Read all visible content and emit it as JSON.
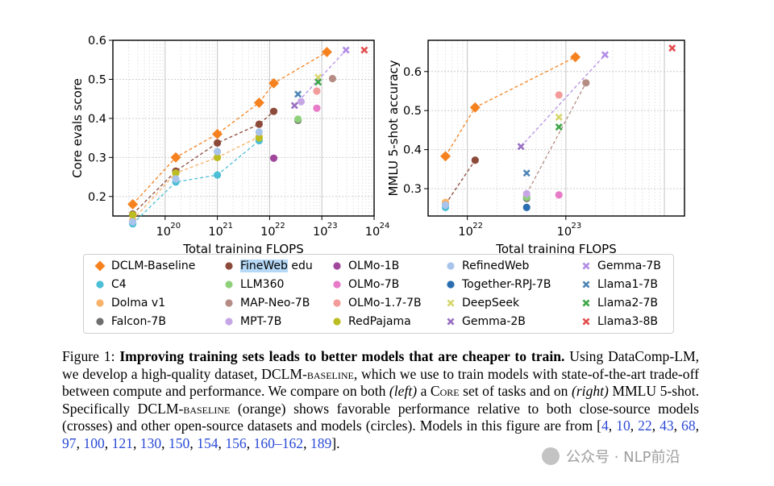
{
  "chart_data": [
    {
      "type": "scatter",
      "xscale": "log",
      "xlabel": "Total training FLOPS",
      "ylabel": "Core evals score",
      "xlim": [
        1e+19,
        1e+24
      ],
      "ylim": [
        0.15,
        0.6
      ],
      "xtick_labels": [
        {
          "base": "10",
          "exp": "20",
          "value": 1e+20
        },
        {
          "base": "10",
          "exp": "21",
          "value": 1e+21
        },
        {
          "base": "10",
          "exp": "22",
          "value": 1e+22
        },
        {
          "base": "10",
          "exp": "23",
          "value": 1e+23
        },
        {
          "base": "10",
          "exp": "24",
          "value": 1e+24
        }
      ],
      "yticks": [
        0.2,
        0.3,
        0.4,
        0.5,
        0.6
      ],
      "ytick_labels": [
        "0.2",
        "0.3",
        "0.4",
        "0.5",
        "0.6"
      ],
      "series": [
        {
          "name": "DCLM-Baseline",
          "color": "#f5821f",
          "marker": "diamond",
          "line": true,
          "points": [
            [
              2.4e+19,
              0.18
            ],
            [
              1.6e+20,
              0.3
            ],
            [
              1e+21,
              0.36
            ],
            [
              6.3e+21,
              0.44
            ],
            [
              1.2e+22,
              0.49
            ],
            [
              1.25e+23,
              0.57
            ]
          ]
        },
        {
          "name": "C4",
          "color": "#4cbfd6",
          "marker": "circle",
          "line": true,
          "points": [
            [
              2.4e+19,
              0.13
            ],
            [
              1.6e+20,
              0.237
            ],
            [
              1e+21,
              0.255
            ],
            [
              6.3e+21,
              0.343
            ]
          ]
        },
        {
          "name": "Dolma v1",
          "color": "#f8b26a",
          "marker": "circle",
          "line": true,
          "points": [
            [
              2.4e+19,
              0.14
            ],
            [
              1.6e+20,
              0.26
            ],
            [
              1e+21,
              0.3
            ],
            [
              6.3e+21,
              0.353
            ]
          ]
        },
        {
          "name": "Falcon-7B",
          "color": "#6e6e6e",
          "marker": "circle",
          "line": false,
          "points": [
            [
              3.5e+22,
              0.395
            ]
          ]
        },
        {
          "name": "FineWeb edu",
          "color": "#8c4a3a",
          "marker": "circle",
          "line": true,
          "points": [
            [
              2.4e+19,
              0.155
            ],
            [
              1.6e+20,
              0.265
            ],
            [
              1e+21,
              0.337
            ],
            [
              6.3e+21,
              0.385
            ],
            [
              1.2e+22,
              0.418
            ]
          ]
        },
        {
          "name": "LLM360",
          "color": "#8fd17a",
          "marker": "circle",
          "line": false,
          "points": [
            [
              3.5e+22,
              0.398
            ]
          ]
        },
        {
          "name": "MAP-Neo-7B",
          "color": "#b58c83",
          "marker": "circle",
          "line": false,
          "points": [
            [
              1.6e+23,
              0.502
            ]
          ]
        },
        {
          "name": "MPT-7B",
          "color": "#c7a6e6",
          "marker": "circle",
          "line": false,
          "points": [
            [
              4e+22,
              0.443
            ]
          ]
        },
        {
          "name": "OLMo-1B",
          "color": "#a0479c",
          "marker": "circle",
          "line": false,
          "points": [
            [
              1.2e+22,
              0.298
            ]
          ]
        },
        {
          "name": "OLMo-7B",
          "color": "#e77bc8",
          "marker": "circle",
          "line": false,
          "points": [
            [
              8e+22,
              0.426
            ]
          ]
        },
        {
          "name": "OLMo-1.7-7B",
          "color": "#f39b9b",
          "marker": "circle",
          "line": false,
          "points": [
            [
              8e+22,
              0.47
            ]
          ]
        },
        {
          "name": "RedPajama",
          "color": "#bcbd22",
          "marker": "circle",
          "line": false,
          "points": [
            [
              2.4e+19,
              0.153
            ],
            [
              1.6e+20,
              0.26
            ],
            [
              1e+21,
              0.3
            ],
            [
              6.3e+21,
              0.35
            ]
          ]
        },
        {
          "name": "RefinedWeb",
          "color": "#a9c4eb",
          "marker": "circle",
          "line": false,
          "points": [
            [
              2.4e+19,
              0.135
            ],
            [
              1.6e+20,
              0.245
            ],
            [
              1e+21,
              0.315
            ],
            [
              6.3e+21,
              0.365
            ]
          ]
        },
        {
          "name": "Together-RPJ-7B",
          "color": "#2a6db0",
          "marker": "circle",
          "line": false,
          "points": []
        },
        {
          "name": "DeepSeek",
          "color": "#d6d66e",
          "marker": "cross",
          "line": false,
          "points": [
            [
              8.5e+22,
              0.505
            ]
          ]
        },
        {
          "name": "Gemma-2B",
          "color": "#9970c2",
          "marker": "cross",
          "line": false,
          "points": [
            [
              3e+22,
              0.433
            ]
          ]
        },
        {
          "name": "Gemma-7B",
          "color": "#b38ce6",
          "marker": "cross",
          "line": false,
          "points": [
            [
              2.9e+23,
              0.575
            ]
          ]
        },
        {
          "name": "Llama1-7B",
          "color": "#4f86b6",
          "marker": "cross",
          "line": false,
          "points": [
            [
              3.5e+22,
              0.462
            ]
          ]
        },
        {
          "name": "Llama2-7B",
          "color": "#3fa64a",
          "marker": "cross",
          "line": false,
          "points": [
            [
              8.5e+22,
              0.493
            ]
          ]
        },
        {
          "name": "Llama3-8B",
          "color": "#e35050",
          "marker": "cross",
          "line": false,
          "points": [
            [
              6.5e+23,
              0.575
            ]
          ]
        }
      ],
      "trend_lines": [
        {
          "name": "Gemma-2B to Gemma-7B",
          "color": "#b38ce6",
          "points": [
            [
              3e+22,
              0.433
            ],
            [
              2.9e+23,
              0.575
            ]
          ]
        }
      ]
    },
    {
      "type": "scatter",
      "xscale": "log",
      "xlabel": "Total training FLOPS",
      "ylabel": "MMLU 5-shot accuracy",
      "xlim": [
        4e+21,
        1.6e+24
      ],
      "ylim": [
        0.23,
        0.68
      ],
      "xtick_labels": [
        {
          "base": "10",
          "exp": "22",
          "value": 1e+22
        },
        {
          "base": "10",
          "exp": "23",
          "value": 1e+23
        }
      ],
      "yticks": [
        0.3,
        0.4,
        0.5,
        0.6
      ],
      "ytick_labels": [
        "0.3",
        "0.4",
        "0.5",
        "0.6"
      ],
      "series": [
        {
          "name": "DCLM-Baseline",
          "color": "#f5821f",
          "marker": "diamond",
          "line": true,
          "points": [
            [
              6e+21,
              0.383
            ],
            [
              1.2e+22,
              0.508
            ],
            [
              1.25e+23,
              0.637
            ]
          ]
        },
        {
          "name": "FineWeb edu",
          "color": "#8c4a3a",
          "marker": "circle",
          "line": true,
          "points": [
            [
              6e+21,
              0.26
            ],
            [
              1.2e+22,
              0.373
            ]
          ]
        },
        {
          "name": "C4",
          "color": "#4cbfd6",
          "marker": "circle",
          "line": false,
          "points": [
            [
              6e+21,
              0.252
            ]
          ]
        },
        {
          "name": "Dolma v1",
          "color": "#f8b26a",
          "marker": "circle",
          "line": false,
          "points": [
            [
              6e+21,
              0.265
            ]
          ]
        },
        {
          "name": "RefinedWeb",
          "color": "#a9c4eb",
          "marker": "circle",
          "line": false,
          "points": [
            [
              6e+21,
              0.258
            ],
            [
              4e+22,
              0.28
            ]
          ]
        },
        {
          "name": "Falcon-7B",
          "color": "#6e6e6e",
          "marker": "circle",
          "line": false,
          "points": [
            [
              4e+22,
              0.275
            ]
          ]
        },
        {
          "name": "LLM360",
          "color": "#8fd17a",
          "marker": "circle",
          "line": false,
          "points": [
            [
              4e+22,
              0.278
            ]
          ]
        },
        {
          "name": "MPT-7B",
          "color": "#c7a6e6",
          "marker": "circle",
          "line": false,
          "points": [
            [
              4e+22,
              0.287
            ]
          ]
        },
        {
          "name": "Together-RPJ-7B",
          "color": "#2a6db0",
          "marker": "circle",
          "line": false,
          "points": [
            [
              4e+22,
              0.252
            ]
          ]
        },
        {
          "name": "OLMo-7B",
          "color": "#e77bc8",
          "marker": "circle",
          "line": false,
          "points": [
            [
              8.5e+22,
              0.284
            ]
          ]
        },
        {
          "name": "OLMo-1.7-7B",
          "color": "#f39b9b",
          "marker": "circle",
          "line": false,
          "points": [
            [
              8.5e+22,
              0.54
            ]
          ]
        },
        {
          "name": "MAP-Neo-7B",
          "color": "#b58c83",
          "marker": "circle",
          "line": false,
          "points": [
            [
              1.6e+23,
              0.571
            ]
          ]
        },
        {
          "name": "Gemma-2B",
          "color": "#9970c2",
          "marker": "cross",
          "line": false,
          "points": [
            [
              3.5e+22,
              0.408
            ]
          ]
        },
        {
          "name": "Llama1-7B",
          "color": "#4f86b6",
          "marker": "cross",
          "line": false,
          "points": [
            [
              4e+22,
              0.34
            ]
          ]
        },
        {
          "name": "DeepSeek",
          "color": "#d6d66e",
          "marker": "cross",
          "line": false,
          "points": [
            [
              8.5e+22,
              0.483
            ]
          ]
        },
        {
          "name": "Llama2-7B",
          "color": "#3fa64a",
          "marker": "cross",
          "line": false,
          "points": [
            [
              8.5e+22,
              0.458
            ]
          ]
        },
        {
          "name": "Gemma-7B",
          "color": "#b38ce6",
          "marker": "cross",
          "line": false,
          "points": [
            [
              2.5e+23,
              0.643
            ]
          ]
        },
        {
          "name": "Llama3-8B",
          "color": "#e35050",
          "marker": "cross",
          "line": false,
          "points": [
            [
              1.2e+24,
              0.66
            ]
          ]
        }
      ],
      "trend_lines": [
        {
          "name": "Gemma-2B to Gemma-7B",
          "color": "#b38ce6",
          "points": [
            [
              3.5e+22,
              0.408
            ],
            [
              2.5e+23,
              0.643
            ]
          ]
        },
        {
          "name": "MPT to MAP-Neo",
          "color": "#b58c83",
          "points": [
            [
              4e+22,
              0.287
            ],
            [
              1.6e+23,
              0.571
            ]
          ]
        }
      ]
    }
  ],
  "legend": {
    "highlighted": "FineWeb",
    "items": [
      {
        "label": "DCLM-Baseline",
        "color": "#f5821f",
        "marker": "diamond"
      },
      {
        "label": "C4",
        "color": "#4cbfd6",
        "marker": "circle"
      },
      {
        "label": "Dolma v1",
        "color": "#f8b26a",
        "marker": "circle"
      },
      {
        "label": "Falcon-7B",
        "color": "#6e6e6e",
        "marker": "circle"
      },
      {
        "label": "FineWeb edu",
        "color": "#8c4a3a",
        "marker": "circle"
      },
      {
        "label": "LLM360",
        "color": "#8fd17a",
        "marker": "circle"
      },
      {
        "label": "MAP-Neo-7B",
        "color": "#b58c83",
        "marker": "circle"
      },
      {
        "label": "MPT-7B",
        "color": "#c7a6e6",
        "marker": "circle"
      },
      {
        "label": "OLMo-1B",
        "color": "#a0479c",
        "marker": "circle"
      },
      {
        "label": "OLMo-7B",
        "color": "#e77bc8",
        "marker": "circle"
      },
      {
        "label": "OLMo-1.7-7B",
        "color": "#f39b9b",
        "marker": "circle"
      },
      {
        "label": "RedPajama",
        "color": "#bcbd22",
        "marker": "circle"
      },
      {
        "label": "RefinedWeb",
        "color": "#a9c4eb",
        "marker": "circle"
      },
      {
        "label": "Together-RPJ-7B",
        "color": "#2a6db0",
        "marker": "circle"
      },
      {
        "label": "DeepSeek",
        "color": "#d6d66e",
        "marker": "cross"
      },
      {
        "label": "Gemma-2B",
        "color": "#9970c2",
        "marker": "cross"
      },
      {
        "label": "Gemma-7B",
        "color": "#b38ce6",
        "marker": "cross"
      },
      {
        "label": "Llama1-7B",
        "color": "#4f86b6",
        "marker": "cross"
      },
      {
        "label": "Llama2-7B",
        "color": "#3fa64a",
        "marker": "cross"
      },
      {
        "label": "Llama3-8B",
        "color": "#e35050",
        "marker": "cross"
      }
    ]
  },
  "caption": {
    "label": "Figure 1:",
    "bold": "Improving training sets leads to better models that are cheaper to train.",
    "t1": "Using DataComp-LM, we develop a high-quality dataset, ",
    "dclm": "DCLM-",
    "baseline_sc": "baseline",
    "t2": ", which we use to train models with state-of-the-art trade-off between compute and performance. We compare on both ",
    "left": "(left)",
    "t3": " a ",
    "core_sc": "Core",
    "t4": " set of tasks and on ",
    "right": "(right)",
    "t5": " MMLU 5-shot. Specifically ",
    "t6": " (orange) shows favorable performance relative to both close-source models (crosses) and other open-source datasets and models (circles). Models in this figure are from [",
    "refs": [
      "4",
      "10",
      "22",
      "43",
      "68",
      "97",
      "100",
      "121",
      "130",
      "150",
      "154",
      "156",
      "160–162",
      "189"
    ],
    "sep": ", ",
    "end": "]."
  },
  "watermark": {
    "text": "公众号 · NLP前沿"
  }
}
